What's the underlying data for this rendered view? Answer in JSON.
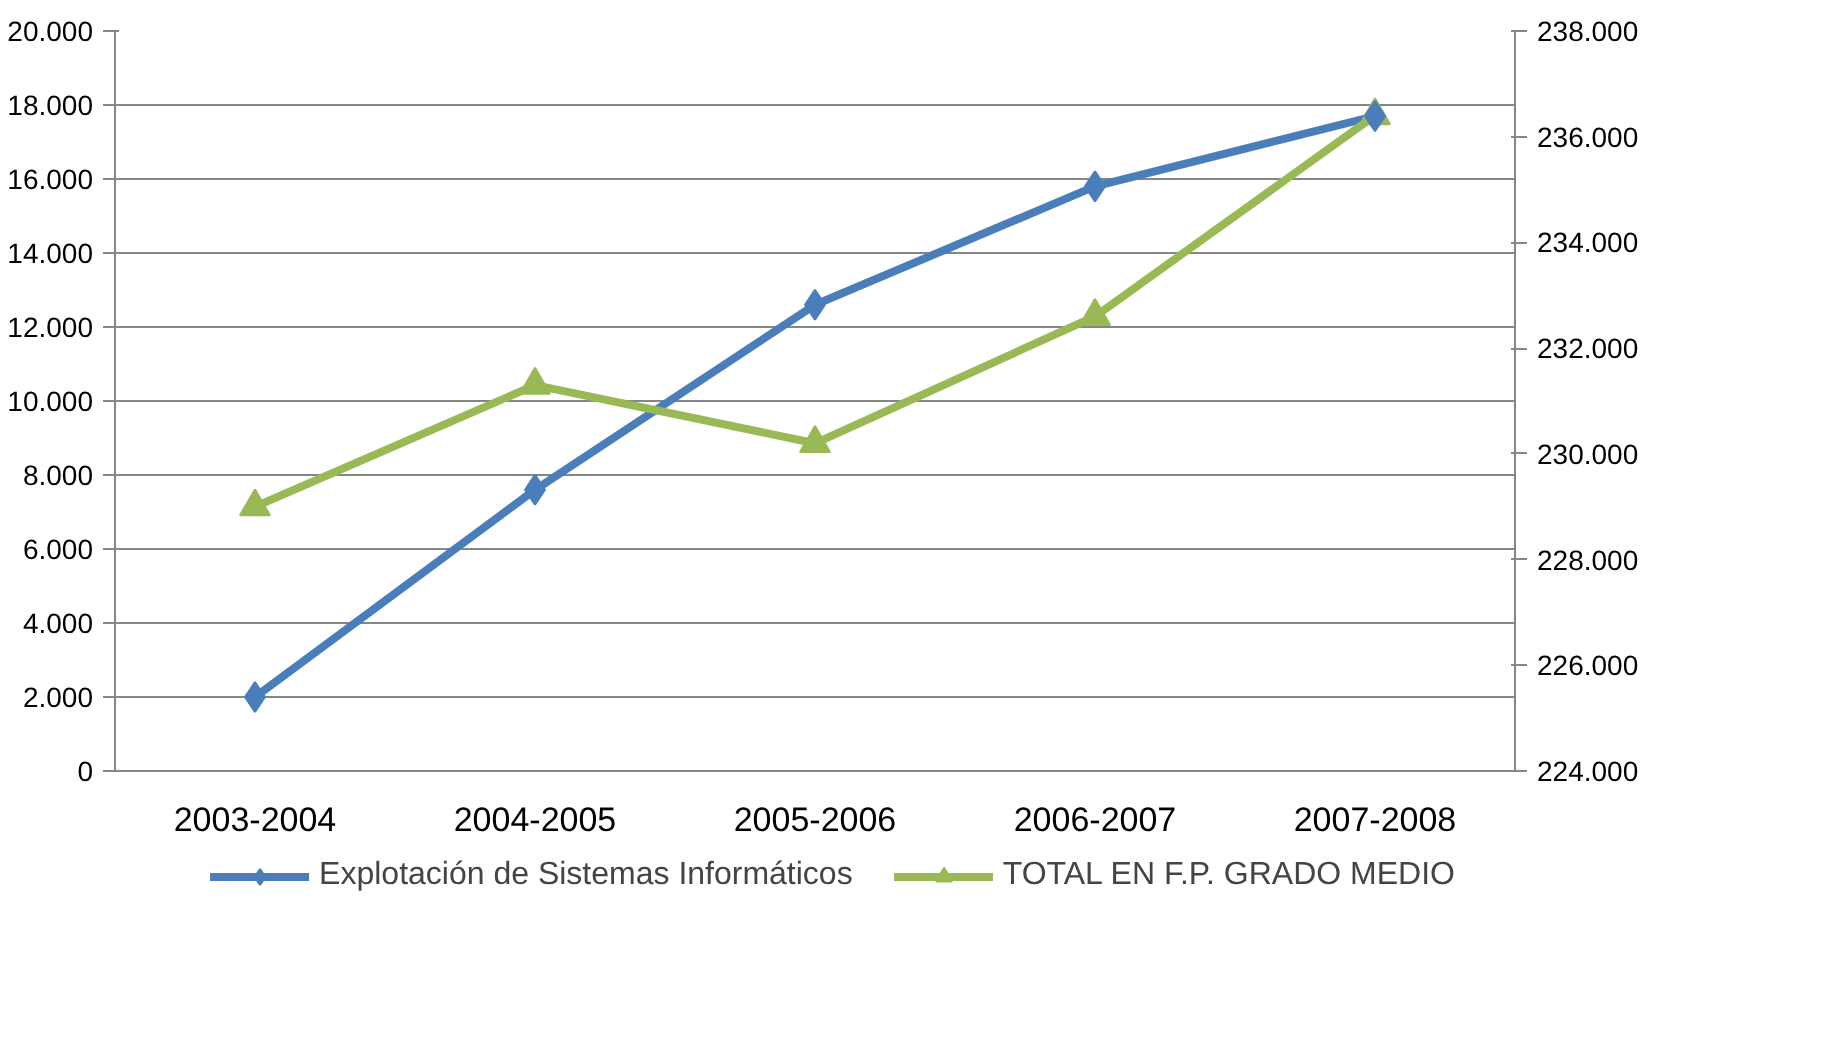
{
  "chart_data": {
    "type": "line",
    "categories": [
      "2003-2004",
      "2004-2005",
      "2005-2006",
      "2006-2007",
      "2007-2008"
    ],
    "series": [
      {
        "name": "Explotación de Sistemas Informáticos",
        "color": "#4a7ebb",
        "marker": "diamond",
        "values": [
          2000,
          7600,
          12600,
          15800,
          17700
        ]
      },
      {
        "name": "TOTAL EN F.P. GRADO MEDIO",
        "color": "#98b954",
        "marker": "triangle",
        "axis": "y2",
        "values": [
          229000,
          231300,
          230200,
          232600,
          236400
        ]
      }
    ],
    "ylim": [
      0,
      20000
    ],
    "yticks": [
      {
        "value": 0,
        "label": "0"
      },
      {
        "value": 2000,
        "label": "2.000"
      },
      {
        "value": 4000,
        "label": "4.000"
      },
      {
        "value": 6000,
        "label": "6.000"
      },
      {
        "value": 8000,
        "label": "8.000"
      },
      {
        "value": 10000,
        "label": "10.000"
      },
      {
        "value": 12000,
        "label": "12.000"
      },
      {
        "value": 14000,
        "label": "14.000"
      },
      {
        "value": 16000,
        "label": "16.000"
      },
      {
        "value": 18000,
        "label": "18.000"
      },
      {
        "value": 20000,
        "label": "20.000"
      }
    ],
    "y2lim": [
      224000,
      238000
    ],
    "y2ticks": [
      {
        "value": 224000,
        "label": "224.000"
      },
      {
        "value": 226000,
        "label": "226.000"
      },
      {
        "value": 228000,
        "label": "228.000"
      },
      {
        "value": 230000,
        "label": "230.000"
      },
      {
        "value": 232000,
        "label": "232.000"
      },
      {
        "value": 234000,
        "label": "234.000"
      },
      {
        "value": 236000,
        "label": "236.000"
      },
      {
        "value": 238000,
        "label": "238.000"
      }
    ],
    "grid": "y",
    "legend": "bottom",
    "line_style": "solid"
  }
}
